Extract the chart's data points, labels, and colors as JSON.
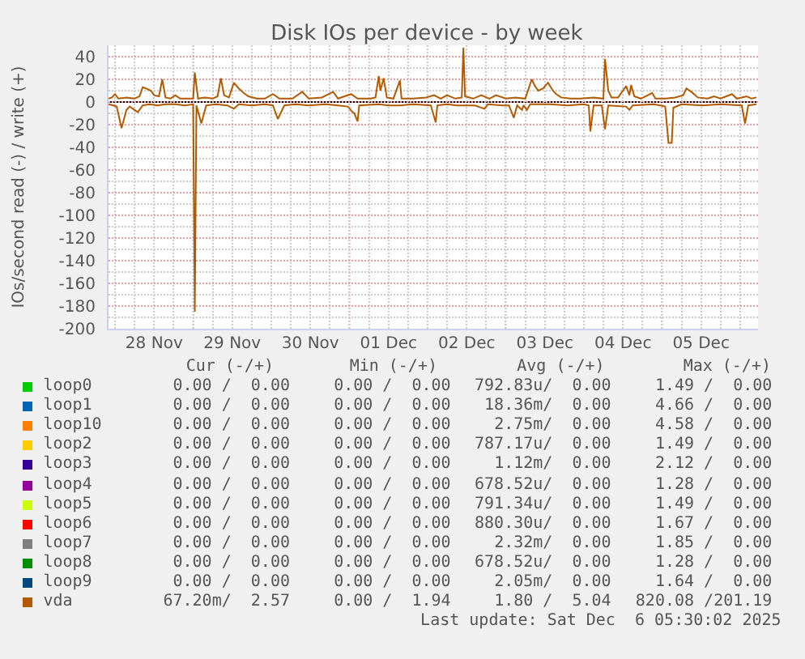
{
  "chart_data": {
    "type": "line",
    "title": "Disk IOs per device - by week",
    "ylabel": "IOs/second read (-) / write (+)",
    "xlim": [
      "2025-11-27T22:00",
      "2025-12-06T05:30"
    ],
    "ylim": [
      -200,
      50
    ],
    "xticks": [
      {
        "value": "2025-11-28T12:00",
        "label": "28 Nov"
      },
      {
        "value": "2025-11-29T12:00",
        "label": "29 Nov"
      },
      {
        "value": "2025-11-30T12:00",
        "label": "30 Nov"
      },
      {
        "value": "2025-12-01T12:00",
        "label": "01 Dec"
      },
      {
        "value": "2025-12-02T12:00",
        "label": "02 Dec"
      },
      {
        "value": "2025-12-03T12:00",
        "label": "03 Dec"
      },
      {
        "value": "2025-12-04T12:00",
        "label": "04 Dec"
      },
      {
        "value": "2025-12-05T12:00",
        "label": "05 Dec"
      }
    ],
    "yticks": [
      -200,
      -180,
      -160,
      -140,
      -120,
      -100,
      -80,
      -60,
      -40,
      -20,
      0,
      20,
      40
    ],
    "grid": true,
    "legend": "bottom",
    "ref_lines": [
      {
        "axis": "y",
        "value": 0,
        "color": "#000000"
      }
    ],
    "series": [
      {
        "name": "loop0",
        "color": "#00cc00"
      },
      {
        "name": "loop1",
        "color": "#0066b3"
      },
      {
        "name": "loop10",
        "color": "#ff8000"
      },
      {
        "name": "loop2",
        "color": "#ffcc00"
      },
      {
        "name": "loop3",
        "color": "#330099"
      },
      {
        "name": "loop4",
        "color": "#990099"
      },
      {
        "name": "loop5",
        "color": "#ccff00"
      },
      {
        "name": "loop6",
        "color": "#ff0000"
      },
      {
        "name": "loop7",
        "color": "#808080"
      },
      {
        "name": "loop8",
        "color": "#008f00"
      },
      {
        "name": "loop9",
        "color": "#00487d"
      },
      {
        "name": "vda",
        "color": "#b35a00",
        "x": [
          "2025-11-27T22:00",
          "2025-11-27T23:00",
          "2025-11-28T00:00",
          "2025-11-28T01:00",
          "2025-11-28T03:30",
          "2025-11-28T06:00",
          "2025-11-28T07:30",
          "2025-11-28T08:30",
          "2025-11-28T09:30",
          "2025-11-28T11:00",
          "2025-11-28T12:00",
          "2025-11-28T13:30",
          "2025-11-28T14:30",
          "2025-11-28T15:30",
          "2025-11-28T17:00",
          "2025-11-28T18:30",
          "2025-11-28T20:00",
          "2025-11-28T22:30",
          "2025-11-29T00:00",
          "2025-11-29T00:30",
          "2025-11-29T01:30",
          "2025-11-29T03:30",
          "2025-11-29T06:00",
          "2025-11-29T07:30",
          "2025-11-29T08:30",
          "2025-11-29T09:30",
          "2025-11-29T11:00",
          "2025-11-29T12:30",
          "2025-11-29T14:00",
          "2025-11-29T15:30",
          "2025-11-29T17:00",
          "2025-11-29T19:30",
          "2025-11-29T22:00",
          "2025-11-30T00:30",
          "2025-11-30T02:30",
          "2025-11-30T06:30",
          "2025-11-30T09:30",
          "2025-11-30T11:30",
          "2025-11-30T15:30",
          "2025-11-30T19:00",
          "2025-11-30T20:30",
          "2025-12-01T00:30",
          "2025-12-01T02:30",
          "2025-12-01T06:30",
          "2025-12-01T08:00",
          "2025-12-01T09:00",
          "2025-12-01T09:30",
          "2025-12-01T10:30",
          "2025-12-01T11:30",
          "2025-12-01T13:30",
          "2025-12-01T15:30",
          "2025-12-01T16:00",
          "2025-12-01T19:30",
          "2025-12-01T23:30",
          "2025-12-02T02:00",
          "2025-12-02T04:00",
          "2025-12-02T06:00",
          "2025-12-02T08:30",
          "2025-12-02T10:30",
          "2025-12-02T11:00",
          "2025-12-02T11:30",
          "2025-12-02T14:00",
          "2025-12-02T16:30",
          "2025-12-02T19:00",
          "2025-12-02T21:00",
          "2025-12-03T00:00",
          "2025-12-03T03:00",
          "2025-12-03T06:00",
          "2025-12-03T08:00",
          "2025-12-03T09:00",
          "2025-12-03T10:00",
          "2025-12-03T11:30",
          "2025-12-03T13:00",
          "2025-12-03T14:30",
          "2025-12-03T15:30",
          "2025-12-03T17:00",
          "2025-12-03T20:00",
          "2025-12-03T23:00",
          "2025-12-04T03:00",
          "2025-12-04T06:00",
          "2025-12-04T06:30",
          "2025-12-04T07:30",
          "2025-12-04T08:30",
          "2025-12-04T10:30",
          "2025-12-04T12:00",
          "2025-12-04T13:00",
          "2025-12-04T14:00",
          "2025-12-04T14:30",
          "2025-12-04T15:30",
          "2025-12-04T17:30",
          "2025-12-04T21:00",
          "2025-12-04T22:00",
          "2025-12-05T01:00",
          "2025-12-05T04:00",
          "2025-12-05T06:30",
          "2025-12-05T07:30",
          "2025-12-05T09:00",
          "2025-12-05T11:00",
          "2025-12-05T14:00",
          "2025-12-05T16:00",
          "2025-12-05T18:00",
          "2025-12-05T21:30",
          "2025-12-05T23:00",
          "2025-12-06T02:00",
          "2025-12-06T03:30",
          "2025-12-06T05:00"
        ],
        "values": [
          3,
          4,
          7,
          3,
          4,
          3,
          5,
          13,
          12,
          10,
          6,
          5,
          20,
          4,
          3,
          6,
          3,
          3,
          3,
          26,
          3,
          4,
          3,
          5,
          21,
          6,
          4,
          17,
          12,
          8,
          5,
          3,
          3,
          7,
          3,
          3,
          9,
          3,
          4,
          9,
          3,
          7,
          3,
          3,
          4,
          23,
          10,
          21,
          4,
          3,
          19,
          3,
          3,
          4,
          6,
          3,
          6,
          3,
          4,
          48,
          5,
          3,
          6,
          3,
          6,
          3,
          4,
          3,
          20,
          14,
          10,
          12,
          17,
          10,
          7,
          4,
          3,
          3,
          4,
          3,
          38,
          10,
          4,
          4,
          10,
          14,
          6,
          15,
          5,
          3,
          8,
          3,
          3,
          4,
          6,
          12,
          9,
          4,
          3,
          5,
          3,
          7,
          3,
          5,
          3,
          4
        ]
      },
      {
        "color": "#b35a00",
        "x": [
          "2025-11-27T22:00",
          "2025-11-27T23:30",
          "2025-11-28T00:30",
          "2025-11-28T02:00",
          "2025-11-28T03:30",
          "2025-11-28T04:30",
          "2025-11-28T07:00",
          "2025-11-28T08:30",
          "2025-11-28T10:30",
          "2025-11-28T13:00",
          "2025-11-28T15:30",
          "2025-11-28T18:30",
          "2025-11-28T21:30",
          "2025-11-29T00:00",
          "2025-11-29T00:30",
          "2025-11-29T01:00",
          "2025-11-29T02:30",
          "2025-11-29T04:00",
          "2025-11-29T07:00",
          "2025-11-29T10:30",
          "2025-11-29T12:30",
          "2025-11-29T14:00",
          "2025-11-29T18:00",
          "2025-11-29T22:00",
          "2025-11-30T00:30",
          "2025-11-30T02:00",
          "2025-11-30T04:00",
          "2025-11-30T07:30",
          "2025-11-30T11:30",
          "2025-11-30T16:30",
          "2025-11-30T20:30",
          "2025-11-30T23:30",
          "2025-12-01T01:00",
          "2025-12-01T01:30",
          "2025-12-01T02:30",
          "2025-12-01T03:00",
          "2025-12-01T09:00",
          "2025-12-01T12:00",
          "2025-12-01T15:30",
          "2025-12-01T19:30",
          "2025-12-02T01:00",
          "2025-12-02T02:30",
          "2025-12-02T03:00",
          "2025-12-02T06:00",
          "2025-12-02T09:00",
          "2025-12-02T14:30",
          "2025-12-02T17:30",
          "2025-12-02T18:30",
          "2025-12-02T23:00",
          "2025-12-03T01:00",
          "2025-12-03T02:30",
          "2025-12-03T03:30",
          "2025-12-03T05:00",
          "2025-12-03T05:30",
          "2025-12-03T06:30",
          "2025-12-03T07:30",
          "2025-12-03T13:30",
          "2025-12-03T19:00",
          "2025-12-04T00:00",
          "2025-12-04T01:30",
          "2025-12-04T02:00",
          "2025-12-04T03:00",
          "2025-12-04T05:30",
          "2025-12-04T06:30",
          "2025-12-04T07:30",
          "2025-12-04T13:00",
          "2025-12-04T14:00",
          "2025-12-04T15:00",
          "2025-12-04T21:30",
          "2025-12-05T01:00",
          "2025-12-05T02:00",
          "2025-12-05T03:00",
          "2025-12-05T03:30",
          "2025-12-05T06:00",
          "2025-12-05T12:30",
          "2025-12-05T18:00",
          "2025-12-06T00:30",
          "2025-12-06T01:30",
          "2025-12-06T02:30",
          "2025-12-06T05:00"
        ],
        "values": [
          -2,
          -3,
          -4,
          -23,
          -7,
          -4,
          -9,
          -3,
          -2,
          -3,
          -2,
          -2,
          -3,
          -2,
          -185,
          -3,
          -19,
          -3,
          -2,
          -3,
          -6,
          -2,
          -3,
          -2,
          -3,
          -15,
          -3,
          -2,
          -3,
          -2,
          -3,
          -4,
          -9,
          -10,
          -17,
          -3,
          -2,
          -3,
          -3,
          -2,
          -3,
          -18,
          -3,
          -2,
          -3,
          -3,
          -6,
          -2,
          -3,
          -3,
          -14,
          -3,
          -7,
          -3,
          -7,
          -2,
          -2,
          -3,
          -2,
          -3,
          -26,
          -3,
          -3,
          -24,
          -3,
          -4,
          -7,
          -3,
          -2,
          -4,
          -36,
          -36,
          -5,
          -2,
          -3,
          -2,
          -3,
          -19,
          -3,
          -2
        ]
      }
    ],
    "annotations": [
      "Cur (-/+)",
      "Min (-/+)",
      "Avg (-/+)",
      "Max (-/+)",
      "0.00 /  0.00",
      "0.00 /  0.00",
      "792.83u/  0.00",
      "1.49 /  0.00",
      "0.00 /  0.00",
      "0.00 /  0.00",
      "18.36m/  0.00",
      "4.66 /  0.00",
      "0.00 /  0.00",
      "0.00 /  0.00",
      "2.75m/  0.00",
      "4.58 /  0.00",
      "0.00 /  0.00",
      "0.00 /  0.00",
      "787.17u/  0.00",
      "1.49 /  0.00",
      "0.00 /  0.00",
      "0.00 /  0.00",
      "1.12m/  0.00",
      "2.12 /  0.00",
      "0.00 /  0.00",
      "0.00 /  0.00",
      "678.52u/  0.00",
      "1.28 /  0.00",
      "0.00 /  0.00",
      "0.00 /  0.00",
      "791.34u/  0.00",
      "1.49 /  0.00",
      "0.00 /  0.00",
      "0.00 /  0.00",
      "880.30u/  0.00",
      "1.67 /  0.00",
      "0.00 /  0.00",
      "0.00 /  0.00",
      "2.32m/  0.00",
      "1.85 /  0.00",
      "0.00 /  0.00",
      "0.00 /  0.00",
      "678.52u/  0.00",
      "1.28 /  0.00",
      "0.00 /  0.00",
      "0.00 /  0.00",
      "2.05m/  0.00",
      "1.64 /  0.00",
      "67.20m/  2.57",
      "0.00 /  1.94",
      "1.80 /  5.04",
      "820.08 /201.19",
      "Last update: Sat Dec  6 05:30:02 2025"
    ]
  }
}
